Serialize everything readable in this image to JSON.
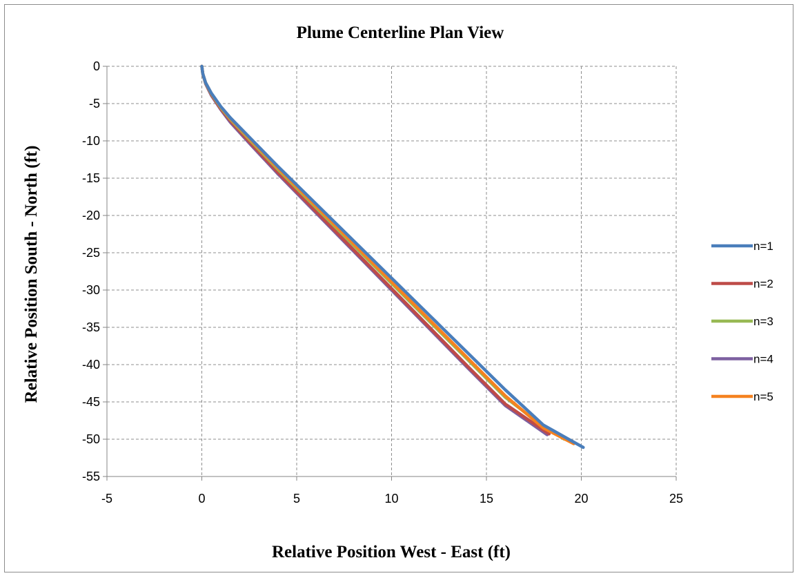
{
  "chart_data": {
    "type": "line",
    "title": "Plume Centerline Plan View",
    "xlabel": "Relative Position West - East (ft)",
    "ylabel": "Relative Position South - North (ft)",
    "xlim": [
      -5,
      25
    ],
    "ylim": [
      -55,
      0
    ],
    "xticks": [
      -5,
      0,
      5,
      10,
      15,
      20,
      25
    ],
    "yticks": [
      0,
      -5,
      -10,
      -15,
      -20,
      -25,
      -30,
      -35,
      -40,
      -45,
      -50,
      -55
    ],
    "xtick_labels": [
      "-5",
      "0",
      "5",
      "10",
      "15",
      "20",
      "25"
    ],
    "ytick_labels": [
      "0",
      "-5",
      "-10",
      "-15",
      "-20",
      "-25",
      "-30",
      "-35",
      "-40",
      "-45",
      "-50",
      "-55"
    ],
    "grid": true,
    "legend_position": "right",
    "series": [
      {
        "name": "n=1",
        "color": "#4a7ebb",
        "x": [
          0,
          0.05,
          0.2,
          0.5,
          1.0,
          1.5,
          2.5,
          4.0,
          6.0,
          8.0,
          10.0,
          12.0,
          14.0,
          16.0,
          18.0,
          20.1
        ],
        "y": [
          0,
          -1.0,
          -2.2,
          -3.6,
          -5.4,
          -6.9,
          -9.5,
          -13.4,
          -18.4,
          -23.4,
          -28.4,
          -33.4,
          -38.4,
          -43.4,
          -48.1,
          -51.1
        ]
      },
      {
        "name": "n=2",
        "color": "#be4b48",
        "x": [
          0,
          0.05,
          0.2,
          0.5,
          1.0,
          1.5,
          2.5,
          4.0,
          6.0,
          8.0,
          10.0,
          12.0,
          14.0,
          16.0,
          18.3
        ],
        "y": [
          0,
          -1.0,
          -2.3,
          -3.8,
          -5.7,
          -7.3,
          -10.1,
          -14.2,
          -19.4,
          -24.6,
          -29.8,
          -35.0,
          -40.2,
          -45.3,
          -49.3
        ]
      },
      {
        "name": "n=3",
        "color": "#98b954",
        "x": [
          0,
          0.05,
          0.2,
          0.5,
          1.0,
          1.5,
          2.5,
          4.0,
          6.0,
          8.0,
          10.0,
          12.0,
          14.0,
          16.0,
          18.0,
          19.1
        ],
        "y": [
          0,
          -1.0,
          -2.25,
          -3.7,
          -5.55,
          -7.1,
          -9.8,
          -13.8,
          -18.9,
          -24.0,
          -29.1,
          -34.2,
          -39.3,
          -44.4,
          -48.3,
          -50.0
        ]
      },
      {
        "name": "n=4",
        "color": "#7d60a0",
        "x": [
          0,
          0.05,
          0.2,
          0.5,
          1.0,
          1.5,
          2.5,
          4.0,
          6.0,
          8.0,
          10.0,
          12.0,
          14.0,
          16.0,
          18.2
        ],
        "y": [
          0,
          -1.0,
          -2.35,
          -3.9,
          -5.8,
          -7.5,
          -10.3,
          -14.4,
          -19.6,
          -24.8,
          -30.0,
          -35.2,
          -40.4,
          -45.5,
          -49.4
        ]
      },
      {
        "name": "n=5",
        "color": "#f58220",
        "x": [
          0,
          0.05,
          0.2,
          0.5,
          1.0,
          1.5,
          2.5,
          4.0,
          6.0,
          8.0,
          10.0,
          12.0,
          14.0,
          16.0,
          18.0,
          19.6
        ],
        "y": [
          0,
          -1.0,
          -2.2,
          -3.65,
          -5.45,
          -7.0,
          -9.65,
          -13.6,
          -18.7,
          -23.8,
          -28.9,
          -34.0,
          -39.1,
          -44.2,
          -48.5,
          -50.6
        ]
      }
    ]
  }
}
